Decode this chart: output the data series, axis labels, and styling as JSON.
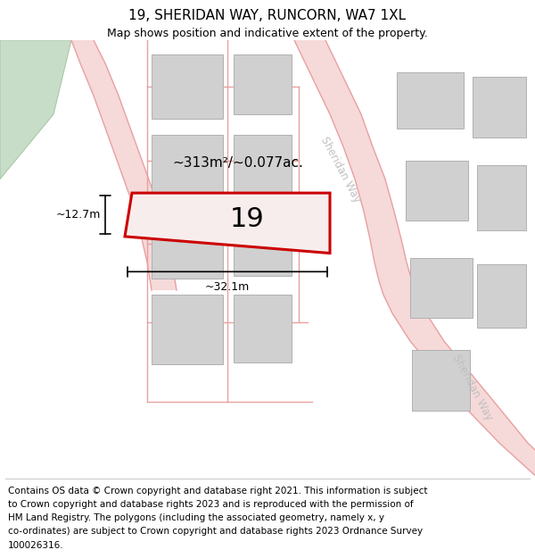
{
  "title": "19, SHERIDAN WAY, RUNCORN, WA7 1XL",
  "subtitle": "Map shows position and indicative extent of the property.",
  "footer_lines": [
    "Contains OS data © Crown copyright and database right 2021. This information is subject",
    "to Crown copyright and database rights 2023 and is reproduced with the permission of",
    "HM Land Registry. The polygons (including the associated geometry, namely x, y",
    "co-ordinates) are subject to Crown copyright and database rights 2023 Ordnance Survey",
    "100026316."
  ],
  "area_label": "~313m²/~0.077ac.",
  "width_label": "~32.1m",
  "height_label": "~12.7m",
  "plot_number": "19",
  "bg_color": "#ffffff",
  "map_bg": "#f0f0f0",
  "road_color": "#e8a0a0",
  "road_fill": "#f5d5d5",
  "block_color": "#d0d0d0",
  "block_border": "#b0b0b0",
  "green_fill": "#c8ddc8",
  "green_border": "#a8c8a8",
  "highlight_color": "#cc0000",
  "highlight_fill": "#f8eded",
  "road_label_color": "#c0c0c0",
  "title_fontsize": 11,
  "subtitle_fontsize": 9,
  "footer_fontsize": 7.5,
  "area_fontsize": 11,
  "plot_num_fontsize": 22,
  "dim_fontsize": 9
}
